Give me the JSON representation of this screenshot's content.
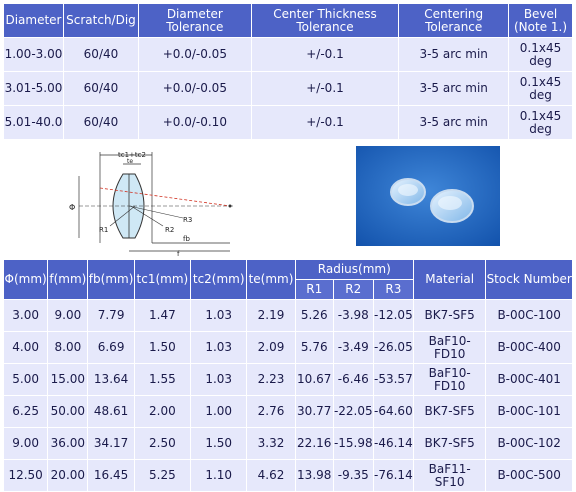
{
  "spec_table": {
    "headers": [
      "Diameter",
      "Scratch/Dig",
      "Diameter Tolerance",
      "Center Thickness Tolerance",
      "Centering Tolerance",
      "Bevel (Note 1.)"
    ],
    "rows": [
      [
        "1.00-3.00",
        "60/40",
        "+0.0/-0.05",
        "+/-0.1",
        "3-5 arc min",
        "0.1x45 deg"
      ],
      [
        "3.01-5.00",
        "60/40",
        "+0.0/-0.05",
        "+/-0.1",
        "3-5 arc min",
        "0.1x45 deg"
      ],
      [
        "5.01-40.0",
        "60/40",
        "+0.0/-0.10",
        "+/-0.1",
        "3-5 arc min",
        "0.1x45 deg"
      ]
    ]
  },
  "diagram": {
    "labels": {
      "top": "tc1+tc2",
      "te": "te",
      "phi": "Φ",
      "r1": "R1",
      "r2": "R2",
      "r3": "R3",
      "fb": "fb",
      "f": "f"
    }
  },
  "data_table": {
    "headers": [
      "Φ(mm)",
      "f(mm)",
      "fb(mm)",
      "tc1(mm)",
      "tc2(mm)",
      "te(mm)",
      "Radius(mm)",
      "Material",
      "Stock Number"
    ],
    "radius_subheaders": [
      "R1",
      "R2",
      "R3"
    ],
    "rows": [
      [
        "3.00",
        "9.00",
        "7.79",
        "1.47",
        "1.03",
        "2.19",
        "5.26",
        "-3.98",
        "-12.05",
        "BK7-SF5",
        "B-00C-100"
      ],
      [
        "4.00",
        "8.00",
        "6.69",
        "1.50",
        "1.03",
        "2.09",
        "5.76",
        "-3.49",
        "-26.05",
        "BaF10-FD10",
        "B-00C-400"
      ],
      [
        "5.00",
        "15.00",
        "13.64",
        "1.55",
        "1.03",
        "2.23",
        "10.67",
        "-6.46",
        "-53.57",
        "BaF10-FD10",
        "B-00C-401"
      ],
      [
        "6.25",
        "50.00",
        "48.61",
        "2.00",
        "1.00",
        "2.76",
        "30.77",
        "-22.05",
        "-64.60",
        "BK7-SF5",
        "B-00C-101"
      ],
      [
        "9.00",
        "36.00",
        "34.17",
        "2.50",
        "1.50",
        "3.32",
        "22.16",
        "-15.98",
        "-46.14",
        "BK7-SF5",
        "B-00C-102"
      ],
      [
        "12.50",
        "20.00",
        "16.45",
        "5.25",
        "1.10",
        "4.62",
        "13.98",
        "-9.35",
        "-76.14",
        "BaF11-SF10",
        "B-00C-500"
      ]
    ]
  }
}
